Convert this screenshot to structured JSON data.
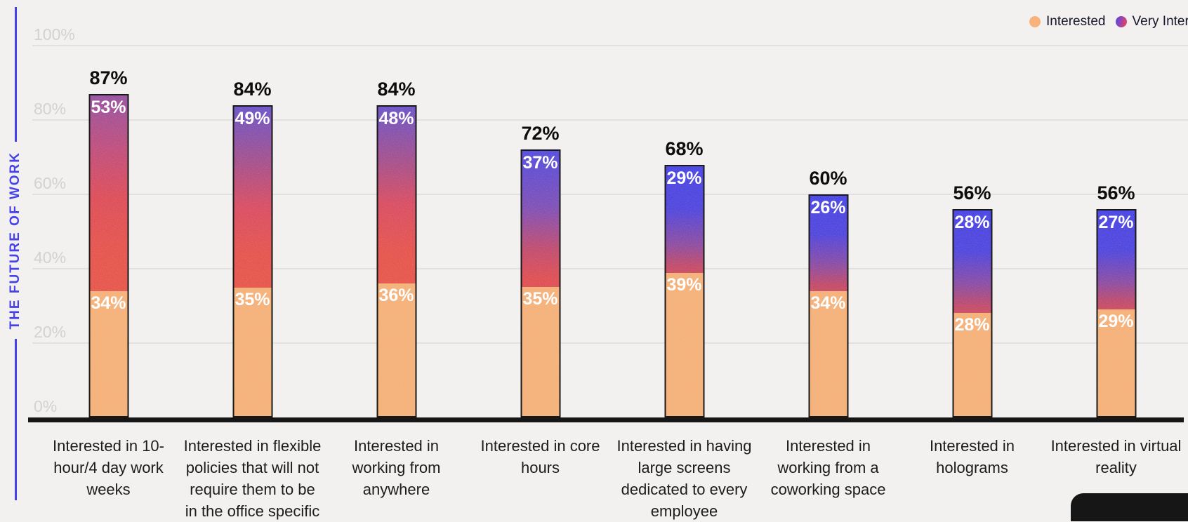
{
  "page": {
    "background": "#f2f1ef"
  },
  "sidebar_title": {
    "text": "THE FUTURE OF WORK",
    "color": "#4741e8"
  },
  "legend": {
    "items": [
      {
        "label": "Interested",
        "color": "#f9b37a"
      },
      {
        "label": "Very Interested",
        "color_start": "#6a45d8",
        "color_end": "#e0446a"
      }
    ],
    "position": "top-right",
    "clipped_at_right_edge": true
  },
  "y_axis": {
    "tick_labels": [
      "0%",
      "20%",
      "40%",
      "60%",
      "80%",
      "100%"
    ],
    "tick_values": [
      0,
      20,
      40,
      60,
      80,
      100
    ],
    "label_color": "#d3d2d0"
  },
  "chart_data": {
    "type": "bar",
    "stacked": true,
    "title": "THE FUTURE OF WORK",
    "xlabel": "",
    "ylabel": "",
    "ylim": [
      0,
      100
    ],
    "grid": true,
    "legend_position": "top-right",
    "categories": [
      "Interested in 10-hour/4 day work weeks",
      "Interested in flexible policies that will not require them to be in the office specific",
      "Interested in working from anywhere",
      "Interested in core hours",
      "Interested in having large screens dedicated to every employee",
      "Interested in working from a coworking space",
      "Interested in holograms",
      "Interested in virtual reality"
    ],
    "category_display_lines": [
      [
        "Interested in 10-",
        "hour/4 day work",
        "weeks"
      ],
      [
        "Interested in flexible",
        "policies that will not",
        "require them to be",
        "in the office specific"
      ],
      [
        "Interested in",
        "working from",
        "anywhere"
      ],
      [
        "Interested in core",
        "hours"
      ],
      [
        "Interested in having",
        "large screens",
        "dedicated to every",
        "employee"
      ],
      [
        "Interested in",
        "working from a",
        "coworking space"
      ],
      [
        "Interested in",
        "holograms"
      ],
      [
        "Interested in virtual",
        "reality"
      ]
    ],
    "series": [
      {
        "name": "Interested",
        "color": "#f9b37a",
        "values": [
          34,
          35,
          36,
          35,
          39,
          34,
          28,
          29
        ]
      },
      {
        "name": "Very Interested",
        "color_top": "#3d38ec",
        "color_mid": "#8a459e",
        "color_bottom": "#ee4a42",
        "values": [
          53,
          49,
          48,
          37,
          29,
          26,
          28,
          27
        ]
      }
    ],
    "totals": [
      "87%",
      "84%",
      "84%",
      "72%",
      "68%",
      "60%",
      "56%",
      "56%"
    ],
    "value_suffix": "%"
  },
  "footer_shape": {
    "color": "#161616"
  }
}
